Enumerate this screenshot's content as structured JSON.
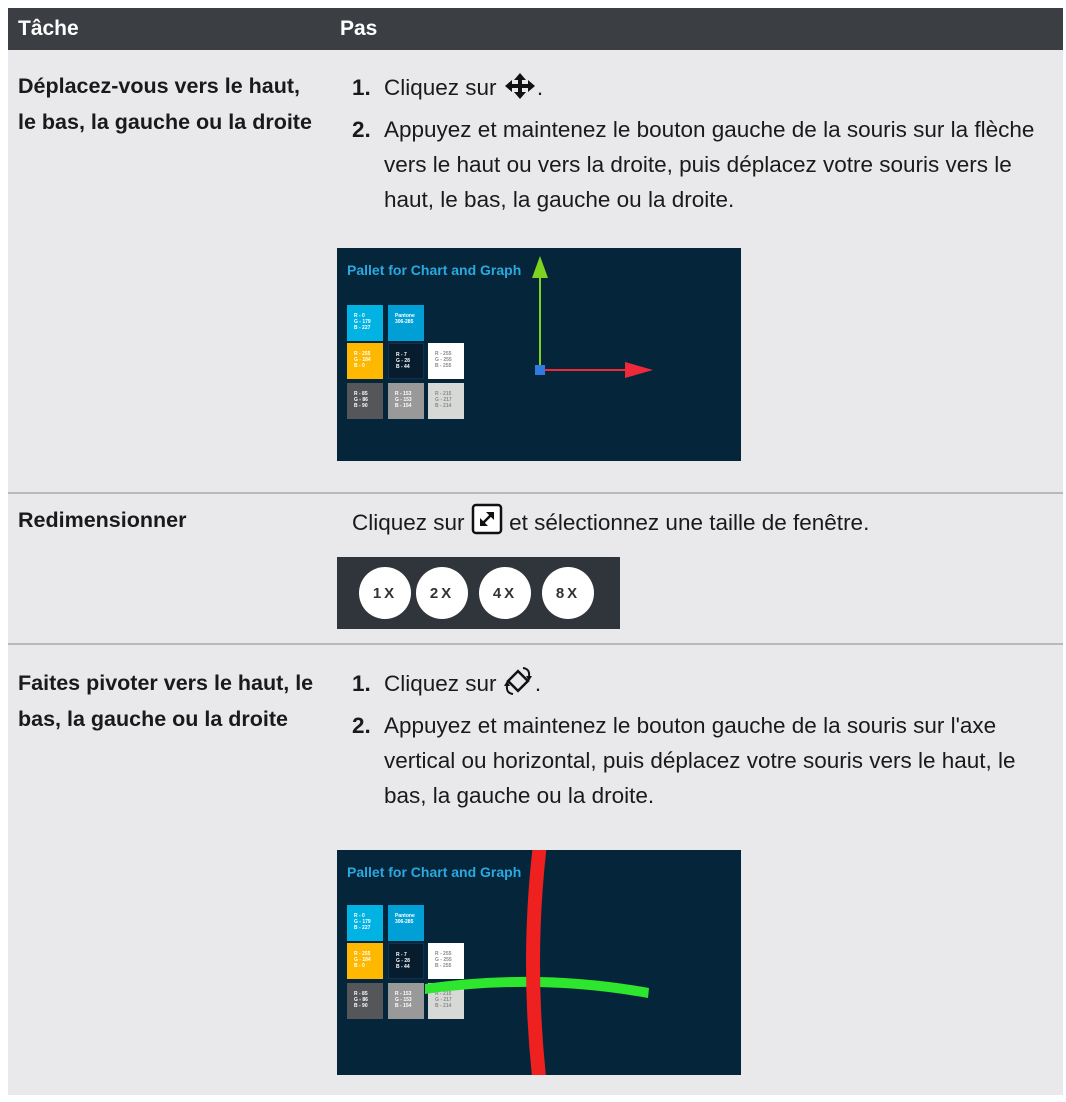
{
  "header": {
    "col1": "Tâche",
    "col2": "Pas"
  },
  "rows": [
    {
      "task": "Déplacez-vous vers le haut, le bas, la gauche ou la droite",
      "steps": [
        {
          "number": "1.",
          "text": "Cliquez sur",
          "text_after": "."
        },
        {
          "number": "2.",
          "text": "Appuyez et maintenez le bouton gauche de la souris sur la flèche vers le haut ou vers la droite, puis déplacez votre souris vers le haut, le bas, la gauche ou la droite."
        }
      ],
      "image": {
        "title": "Pallet for Chart and Graph",
        "swatches": [
          [
            "R - 0",
            "G - 179",
            "B - 227"
          ],
          [
            "Pantone",
            "306-285"
          ],
          [
            "R - 255",
            "G - 184",
            "B - 0"
          ],
          [
            "R - 7",
            "G - 28",
            "B - 44"
          ],
          [
            "R - 255",
            "G - 255",
            "B - 255"
          ],
          [
            "R - 85",
            "G - 86",
            "B - 90"
          ],
          [
            "R - 153",
            "G - 153",
            "B - 154"
          ],
          [
            "R - 215",
            "G - 217",
            "B - 214"
          ]
        ]
      }
    },
    {
      "task": "Redimensionner",
      "instruction": "Cliquez sur",
      "instruction_after": "et sélectionnez une taille de fenêtre.",
      "buttons": [
        "1X",
        "2X",
        "4X",
        "8X"
      ]
    },
    {
      "task": "Faites pivoter vers le haut, le bas, la gauche ou la droite",
      "steps": [
        {
          "number": "1.",
          "text": "Cliquez sur",
          "text_after": "."
        },
        {
          "number": "2.",
          "text": "Appuyez et maintenez le bouton gauche de la souris sur l'axe vertical ou horizontal, puis déplacez votre souris vers le haut, le bas, la gauche ou la droite."
        }
      ],
      "image": {
        "title": "Pallet for Chart and Graph",
        "swatches": [
          [
            "R - 0",
            "G - 179",
            "B - 227"
          ],
          [
            "Pantone",
            "306-285"
          ],
          [
            "R - 255",
            "G - 184",
            "B - 0"
          ],
          [
            "R - 7",
            "G - 28",
            "B - 44"
          ],
          [
            "R - 255",
            "G - 255",
            "B - 255"
          ],
          [
            "R - 85",
            "G - 86",
            "B - 90"
          ],
          [
            "R - 153",
            "G - 153",
            "B - 154"
          ],
          [
            "R - 215",
            "G - 217",
            "B - 214"
          ]
        ]
      }
    }
  ]
}
